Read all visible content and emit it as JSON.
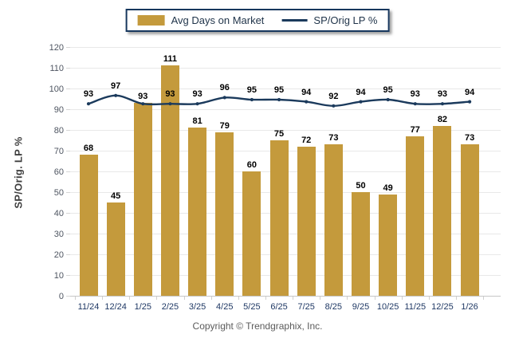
{
  "legend": {
    "bar_label": "Avg Days on Market",
    "line_label": "SP/Orig LP %"
  },
  "chart_data": {
    "type": "bar",
    "categories": [
      "11/24",
      "12/24",
      "1/25",
      "2/25",
      "3/25",
      "4/25",
      "5/25",
      "6/25",
      "7/25",
      "8/25",
      "9/25",
      "10/25",
      "11/25",
      "12/25",
      "1/26"
    ],
    "series": [
      {
        "name": "Avg Days on Market",
        "type": "bar",
        "values": [
          68,
          45,
          93,
          111,
          81,
          79,
          60,
          75,
          72,
          73,
          50,
          49,
          77,
          82,
          73
        ]
      },
      {
        "name": "SP/Orig LP %",
        "type": "line",
        "values": [
          93,
          97,
          93,
          93,
          93,
          96,
          95,
          95,
          94,
          92,
          94,
          95,
          93,
          93,
          94
        ]
      }
    ],
    "title": "",
    "xlabel": "",
    "ylabel": "SP/Orig. LP %",
    "ylim": [
      0,
      120
    ],
    "yticks": [
      0,
      10,
      20,
      30,
      40,
      50,
      60,
      70,
      80,
      90,
      100,
      110,
      120
    ],
    "grid": true,
    "legend_position": "top-center",
    "value_labels": true
  },
  "footer": {
    "copyright": "Copyright © Trendgraphix, Inc."
  },
  "colors": {
    "bar": "#C49A3C",
    "line": "#1B3A5C",
    "legend_border": "#17375E",
    "legend_text": "#1F3349",
    "grid": "#E8E8E8",
    "axis_line": "#C6C6C6",
    "y_axis_title": "#3F3F3F",
    "x_tick_label": "#1F3864",
    "y_tick_label": "#4E5561",
    "value_label": "#000000",
    "copyright": "#5B5B5B"
  }
}
